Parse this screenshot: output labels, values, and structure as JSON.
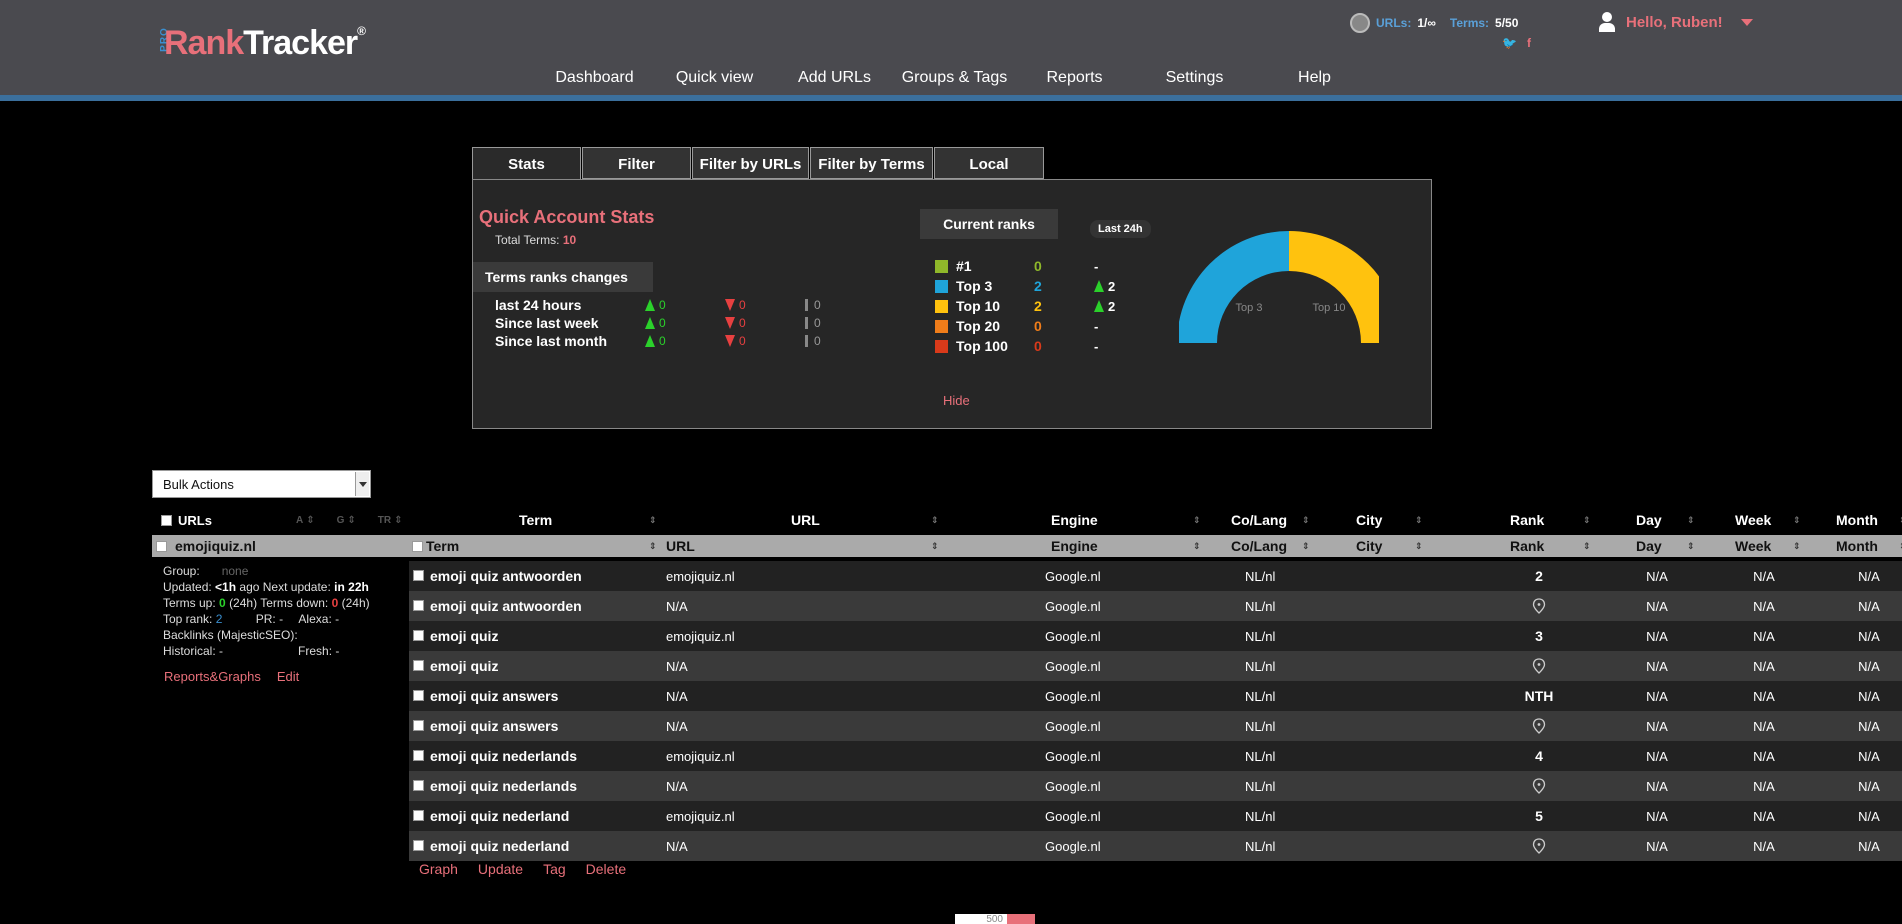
{
  "header": {
    "logo": {
      "pro": "PRO",
      "rank": "Rank",
      "tracker": "Tracker",
      "reg": "®"
    },
    "nav": [
      "Dashboard",
      "Quick view",
      "Add URLs",
      "Groups & Tags",
      "Reports",
      "Settings",
      "Help"
    ],
    "account": {
      "urls_label": "URLs:",
      "urls_value": "1/∞",
      "terms_label": "Terms:",
      "terms_value": "5/50"
    },
    "user": "Hello, Ruben!"
  },
  "tabs": [
    "Stats",
    "Filter",
    "Filter by URLs",
    "Filter by Terms",
    "Local"
  ],
  "stats": {
    "title": "Quick Account Stats",
    "total_terms_label": "Total Terms:",
    "total_terms_value": "10",
    "changes_heading": "Terms ranks changes",
    "changes": [
      {
        "label": "last 24 hours",
        "up": "0",
        "down": "0",
        "neutral": "0"
      },
      {
        "label": "Since last week",
        "up": "0",
        "down": "0",
        "neutral": "0"
      },
      {
        "label": "Since last month",
        "up": "0",
        "down": "0",
        "neutral": "0"
      }
    ],
    "current_heading": "Current ranks",
    "last24": "Last 24h",
    "ranks": [
      {
        "label": "#1",
        "count": "0",
        "change": "-",
        "color": "#8fb82a",
        "count_color": "#8fb82a",
        "up": false
      },
      {
        "label": "Top 3",
        "count": "2",
        "change": "2",
        "color": "#1fa4da",
        "count_color": "#1fa4da",
        "up": true
      },
      {
        "label": "Top 10",
        "count": "2",
        "change": "2",
        "color": "#ffc20e",
        "count_color": "#ffc20e",
        "up": true
      },
      {
        "label": "Top 20",
        "count": "0",
        "change": "-",
        "color": "#f07d1a",
        "count_color": "#f07d1a",
        "up": false
      },
      {
        "label": "Top 100",
        "count": "0",
        "change": "-",
        "color": "#d93a1a",
        "count_color": "#d93a1a",
        "up": false
      }
    ],
    "donut_labels": {
      "top3": "Top 3",
      "top10": "Top 10"
    },
    "hide": "Hide"
  },
  "bulk": {
    "label": "Bulk Actions"
  },
  "urls_panel": {
    "heading": "URLs",
    "sort_labels": [
      "A",
      "G",
      "TR"
    ],
    "site": "emojiquiz.nl",
    "group_label": "Group:",
    "group_value": "none",
    "updated_label": "Updated:",
    "updated_value": "<1h",
    "ago": "ago Next update:",
    "next_value": "in 22h",
    "terms_up_label": "Terms up:",
    "terms_up_value": "0",
    "terms_up_suffix": "(24h) Terms down:",
    "terms_down_value": "0",
    "terms_down_suffix": "(24h)",
    "top_rank_label": "Top rank:",
    "top_rank_value": "2",
    "pr": "PR: -",
    "alexa": "Alexa: -",
    "backlinks": "Backlinks (MajesticSEO):",
    "historical": "Historical: -",
    "fresh": "Fresh: -",
    "links": [
      "Reports&Graphs",
      "Edit"
    ]
  },
  "table": {
    "headers": {
      "term": "Term",
      "url": "URL",
      "engine": "Engine",
      "colang": "Co/Lang",
      "city": "City",
      "rank": "Rank",
      "day": "Day",
      "week": "Week",
      "month": "Month"
    },
    "rows": [
      {
        "term": "emoji quiz antwoorden",
        "url": "emojiquiz.nl",
        "engine": "Google.nl",
        "colang": "NL/nl",
        "rank": "2",
        "pin": false,
        "day": "N/A",
        "week": "N/A",
        "month": "N/A"
      },
      {
        "term": "emoji quiz antwoorden",
        "url": "N/A",
        "engine": "Google.nl",
        "colang": "NL/nl",
        "rank": "",
        "pin": true,
        "day": "N/A",
        "week": "N/A",
        "month": "N/A"
      },
      {
        "term": "emoji quiz",
        "url": "emojiquiz.nl",
        "engine": "Google.nl",
        "colang": "NL/nl",
        "rank": "3",
        "pin": false,
        "day": "N/A",
        "week": "N/A",
        "month": "N/A"
      },
      {
        "term": "emoji quiz",
        "url": "N/A",
        "engine": "Google.nl",
        "colang": "NL/nl",
        "rank": "",
        "pin": true,
        "day": "N/A",
        "week": "N/A",
        "month": "N/A"
      },
      {
        "term": "emoji quiz answers",
        "url": "N/A",
        "engine": "Google.nl",
        "colang": "NL/nl",
        "rank": "NTH",
        "pin": false,
        "day": "N/A",
        "week": "N/A",
        "month": "N/A"
      },
      {
        "term": "emoji quiz answers",
        "url": "N/A",
        "engine": "Google.nl",
        "colang": "NL/nl",
        "rank": "",
        "pin": true,
        "day": "N/A",
        "week": "N/A",
        "month": "N/A"
      },
      {
        "term": "emoji quiz nederlands",
        "url": "emojiquiz.nl",
        "engine": "Google.nl",
        "colang": "NL/nl",
        "rank": "4",
        "pin": false,
        "day": "N/A",
        "week": "N/A",
        "month": "N/A"
      },
      {
        "term": "emoji quiz nederlands",
        "url": "N/A",
        "engine": "Google.nl",
        "colang": "NL/nl",
        "rank": "",
        "pin": true,
        "day": "N/A",
        "week": "N/A",
        "month": "N/A"
      },
      {
        "term": "emoji quiz nederland",
        "url": "emojiquiz.nl",
        "engine": "Google.nl",
        "colang": "NL/nl",
        "rank": "5",
        "pin": false,
        "day": "N/A",
        "week": "N/A",
        "month": "N/A"
      },
      {
        "term": "emoji quiz nederland",
        "url": "N/A",
        "engine": "Google.nl",
        "colang": "NL/nl",
        "rank": "",
        "pin": true,
        "day": "N/A",
        "week": "N/A",
        "month": "N/A"
      }
    ],
    "actions": [
      "Graph",
      "Update",
      "Tag",
      "Delete"
    ]
  },
  "pager": {
    "value": "500"
  }
}
